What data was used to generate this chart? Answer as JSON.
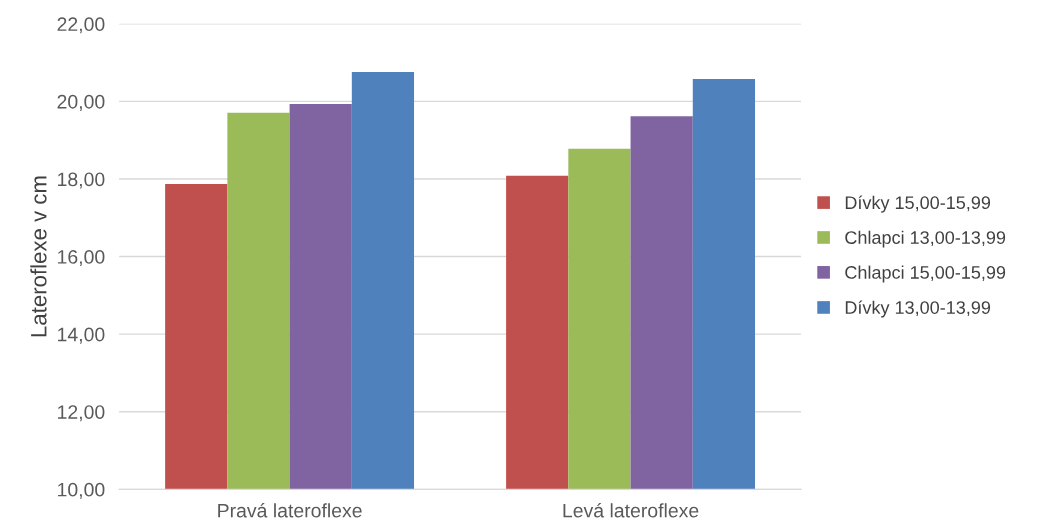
{
  "chart_data": {
    "type": "bar",
    "ylabel": "Lateroflexe v cm",
    "categories": [
      "Pravá lateroflexe",
      "Levá lateroflexe"
    ],
    "series": [
      {
        "name": "Dívky 15,00-15,99",
        "color": "#c0504d",
        "values": [
          17.87,
          18.08
        ]
      },
      {
        "name": "Chlapci 13,00-13,99",
        "color": "#9bbb59",
        "values": [
          19.71,
          18.78
        ]
      },
      {
        "name": "Chlapci 15,00-15,99",
        "color": "#8064a2",
        "values": [
          19.93,
          19.62
        ]
      },
      {
        "name": "Dívky 13,00-13,99",
        "color": "#4f81bd",
        "values": [
          20.76,
          20.58
        ]
      }
    ],
    "ylim": [
      10,
      22
    ],
    "yticks": [
      {
        "value": 10,
        "label": "10,00"
      },
      {
        "value": 12,
        "label": "12,00"
      },
      {
        "value": 14,
        "label": "14,00"
      },
      {
        "value": 16,
        "label": "16,00"
      },
      {
        "value": 18,
        "label": "18,00"
      },
      {
        "value": 20,
        "label": "20,00"
      },
      {
        "value": 22,
        "label": "22,00"
      }
    ],
    "grid": "y",
    "legend": "right"
  }
}
